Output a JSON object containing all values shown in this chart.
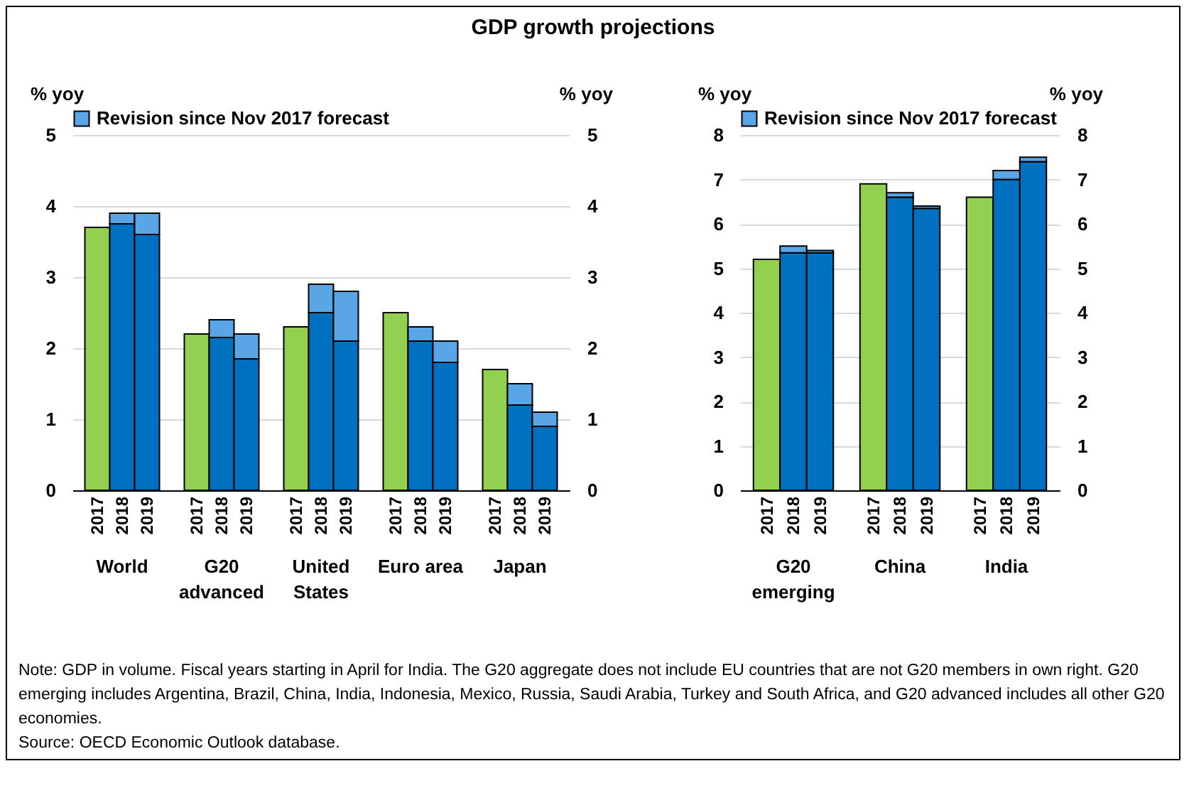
{
  "chart_data": [
    {
      "type": "bar",
      "title": "GDP growth projections",
      "stacked": true,
      "categories": [
        "2017",
        "2018",
        "2019",
        "2017",
        "2018",
        "2019",
        "2017",
        "2018",
        "2019",
        "2017",
        "2018",
        "2019",
        "2017",
        "2018",
        "2019"
      ],
      "series": [
        {
          "colors": [
            "#92d050",
            "#0070c0",
            "#0070c0",
            "#92d050",
            "#0070c0",
            "#0070c0",
            "#92d050",
            "#0070c0",
            "#0070c0",
            "#92d050",
            "#0070c0",
            "#0070c0",
            "#92d050",
            "#0070c0",
            "#0070c0"
          ],
          "values": [
            3.7,
            3.75,
            3.6,
            2.2,
            2.15,
            1.85,
            2.3,
            2.5,
            2.1,
            2.5,
            2.1,
            1.8,
            1.7,
            1.2,
            0.9
          ]
        },
        {
          "name": "Revision since Nov 2017 forecast",
          "color": "#5aa5e6",
          "values": [
            null,
            0.15,
            0.3,
            null,
            0.25,
            0.35,
            null,
            0.4,
            0.7,
            null,
            0.2,
            0.3,
            null,
            0.3,
            0.2
          ]
        }
      ],
      "ylim": [
        0,
        5
      ],
      "yticks": [
        0,
        1,
        2,
        3,
        4,
        5
      ],
      "y2lim": [
        0,
        5
      ],
      "y2ticks": [
        0,
        1,
        2,
        3,
        4,
        5
      ],
      "ylabel": "% yoy",
      "y2label": "% yoy",
      "grid": "y",
      "legend": "top",
      "annotations": [
        "World",
        "G20\nadvanced",
        "United\nStates",
        "Euro area",
        "Japan",
        "Note: GDP in volume. Fiscal years starting in April for India. The G20 aggregate does not include EU countries that are not G20 members in own right. G20 emerging includes Argentina, Brazil, China, India, Indonesia, Mexico, Russia, Saudi Arabia, Turkey and South Africa, and G20 advanced includes all other G20 economies.",
        "Source: OECD Economic Outlook database."
      ]
    },
    {
      "type": "bar",
      "stacked": true,
      "categories": [
        "2017",
        "2018",
        "2019",
        "2017",
        "2018",
        "2019",
        "2017",
        "2018",
        "2019"
      ],
      "series": [
        {
          "colors": [
            "#92d050",
            "#0070c0",
            "#0070c0",
            "#92d050",
            "#0070c0",
            "#0070c0",
            "#92d050",
            "#0070c0",
            "#0070c0"
          ],
          "values": [
            5.2,
            5.35,
            5.35,
            6.9,
            6.6,
            6.35,
            6.6,
            7.0,
            7.4
          ]
        },
        {
          "name": "Revision since Nov 2017 forecast",
          "color": "#5aa5e6",
          "values": [
            null,
            0.15,
            0.05,
            null,
            0.1,
            0.05,
            null,
            0.2,
            0.1
          ]
        }
      ],
      "ylim": [
        0,
        8
      ],
      "yticks": [
        0,
        1,
        2,
        3,
        4,
        5,
        6,
        7,
        8
      ],
      "y2lim": [
        0,
        8
      ],
      "y2ticks": [
        0,
        1,
        2,
        3,
        4,
        5,
        6,
        7,
        8
      ],
      "ylabel": "% yoy",
      "y2label": "% yoy",
      "grid": "y",
      "legend": "top",
      "annotations": [
        "G20\nemerging",
        "China",
        "India"
      ]
    }
  ]
}
